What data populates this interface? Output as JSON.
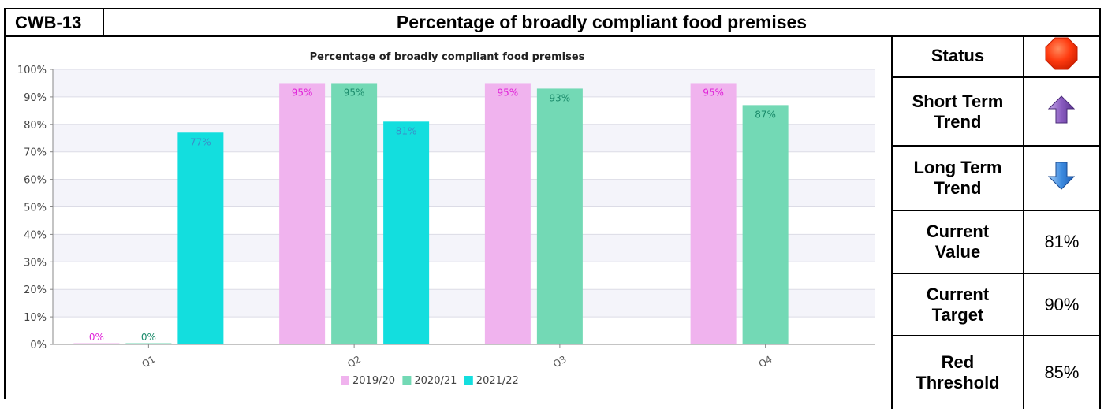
{
  "header": {
    "code": "CWB-13",
    "title": "Percentage of broadly compliant food premises"
  },
  "status_table": {
    "status_label": "Status",
    "status_icon": "red-octagon-icon",
    "short_term_label_1": "Short Term",
    "short_term_label_2": "Trend",
    "short_term_icon": "purple-up-arrow-icon",
    "long_term_label_1": "Long Term",
    "long_term_label_2": "Trend",
    "long_term_icon": "blue-down-arrow-icon",
    "current_value_label_1": "Current",
    "current_value_label_2": "Value",
    "current_value": "81%",
    "current_target_label_1": "Current",
    "current_target_label_2": "Target",
    "current_target": "90%",
    "red_threshold_label_1": "Red",
    "red_threshold_label_2": "Threshold",
    "red_threshold": "85%"
  },
  "chart_data": {
    "type": "bar",
    "title": "Percentage of broadly compliant food premises",
    "xlabel": "",
    "ylabel": "",
    "ylim": [
      0,
      100
    ],
    "yticks": [
      "0%",
      "10%",
      "20%",
      "30%",
      "40%",
      "50%",
      "60%",
      "70%",
      "80%",
      "90%",
      "100%"
    ],
    "categories": [
      "Q1",
      "Q2",
      "Q3",
      "Q4"
    ],
    "series": [
      {
        "name": "2019/20",
        "color": "#f0b3ee",
        "label_color": "#e020d8",
        "values": [
          0,
          95,
          95,
          95
        ],
        "labels": [
          "0%",
          "95%",
          "95%",
          "95%"
        ]
      },
      {
        "name": "2020/21",
        "color": "#73d9b5",
        "label_color": "#1a8a6a",
        "values": [
          0,
          95,
          93,
          87
        ],
        "labels": [
          "0%",
          "95%",
          "93%",
          "87%"
        ]
      },
      {
        "name": "2021/22",
        "color": "#13dede",
        "label_color": "#3a8ec9",
        "values": [
          77,
          81,
          null,
          null
        ],
        "labels": [
          "77%",
          "81%",
          "",
          ""
        ]
      }
    ],
    "grid": true,
    "legend_position": "bottom-center"
  }
}
